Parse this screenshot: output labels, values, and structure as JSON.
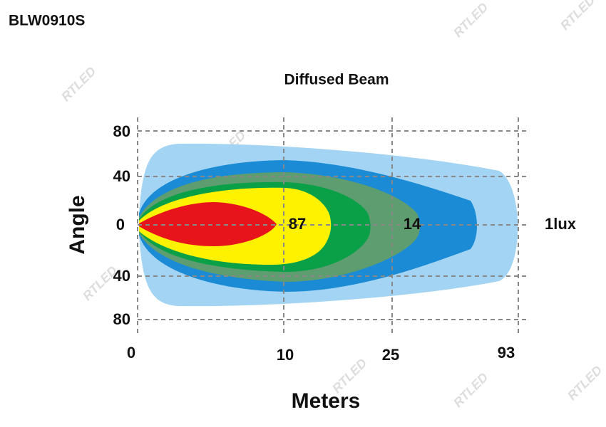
{
  "header": {
    "code": "BLW0910S",
    "title": "Diffused Beam"
  },
  "watermark": "RTLED",
  "y_axis": {
    "label": "Angle",
    "ticks": [
      "80",
      "40",
      "0",
      "40",
      "80"
    ]
  },
  "x_axis": {
    "label": "Meters",
    "ticks": [
      "0",
      "10",
      "25",
      "93"
    ]
  },
  "zones": [
    "87",
    "14",
    "1lux"
  ]
}
